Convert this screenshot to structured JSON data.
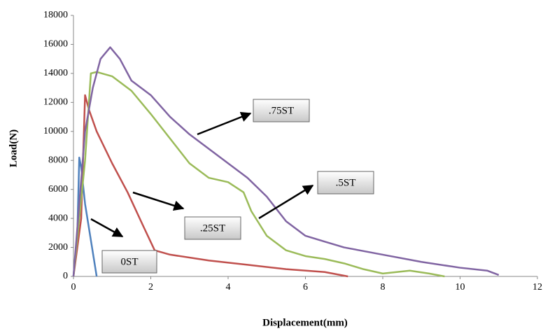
{
  "chart_data": {
    "type": "line",
    "x_label": "Displacement(mm)",
    "y_label": "Load(N)",
    "xlim": [
      0,
      12
    ],
    "xticks": [
      0,
      2,
      4,
      6,
      8,
      10,
      12
    ],
    "ylim": [
      0,
      18000
    ],
    "yticks": [
      0,
      2000,
      4000,
      6000,
      8000,
      10000,
      12000,
      14000,
      16000,
      18000
    ],
    "grid": false,
    "series": [
      {
        "name": "0ST",
        "color": "#4f81bd",
        "x": [
          0,
          0.1,
          0.15,
          0.2,
          0.3,
          0.45,
          0.6
        ],
        "values": [
          0,
          3000,
          8200,
          7500,
          5000,
          2500,
          0
        ]
      },
      {
        "name": ".25ST",
        "color": "#c0504d",
        "x": [
          0,
          0.2,
          0.3,
          0.4,
          0.6,
          1,
          1.4,
          1.8,
          2.1,
          2.5,
          3.5,
          4.5,
          5.5,
          6.5,
          7.1
        ],
        "values": [
          0,
          4000,
          12500,
          11500,
          10000,
          7800,
          5800,
          3500,
          1800,
          1500,
          1100,
          800,
          500,
          300,
          0
        ]
      },
      {
        "name": ".5ST",
        "color": "#9bbb59",
        "x": [
          0,
          0.3,
          0.45,
          0.6,
          1,
          1.5,
          2,
          2.5,
          3,
          3.5,
          4,
          4.4,
          4.6,
          5,
          5.5,
          6,
          6.5,
          7,
          7.5,
          8,
          8.7,
          9.2,
          9.6
        ],
        "values": [
          0,
          8000,
          14000,
          14100,
          13800,
          12800,
          11200,
          9500,
          7800,
          6800,
          6500,
          5800,
          4500,
          2800,
          1800,
          1400,
          1200,
          900,
          500,
          200,
          400,
          200,
          0
        ]
      },
      {
        "name": ".75ST",
        "color": "#8064a2",
        "x": [
          0,
          0.3,
          0.5,
          0.7,
          0.95,
          1.2,
          1.5,
          2,
          2.5,
          3,
          3.5,
          4,
          4.5,
          5,
          5.5,
          6,
          6.5,
          7,
          8,
          9,
          10,
          10.7,
          11
        ],
        "values": [
          0,
          10000,
          13000,
          15000,
          15800,
          15000,
          13500,
          12500,
          11000,
          9800,
          8800,
          7800,
          6800,
          5500,
          3800,
          2800,
          2400,
          2000,
          1500,
          1000,
          600,
          400,
          100
        ]
      }
    ]
  }
}
